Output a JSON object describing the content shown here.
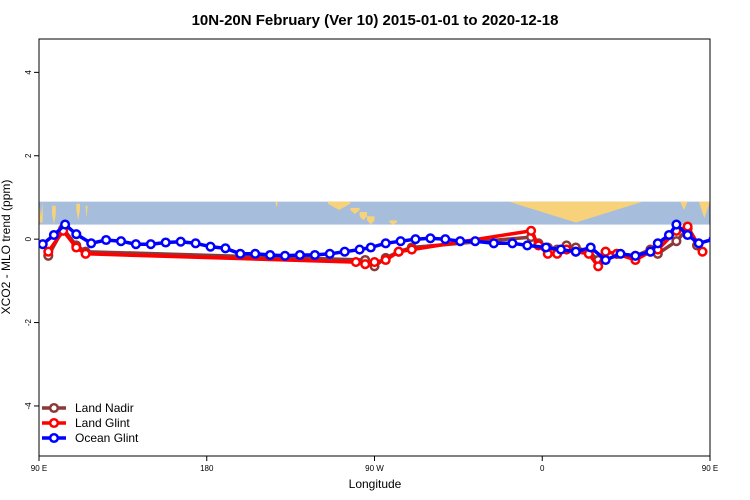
{
  "chart_data": {
    "type": "line",
    "title": "10N-20N February (Ver 10)   2015-01-01 to 2020-12-18",
    "xlabel": "Longitude",
    "ylabel": "XCO2 - MLO trend (ppm)",
    "xlim": [
      90,
      450
    ],
    "ylim": [
      -5.2,
      4.8
    ],
    "x_ticks": [
      {
        "value": 90,
        "label": "90 E"
      },
      {
        "value": 180,
        "label": "180"
      },
      {
        "value": 270,
        "label": "90 W"
      },
      {
        "value": 360,
        "label": "0"
      },
      {
        "value": 450,
        "label": "90 E"
      },
      {
        "value": 540,
        "label": "180"
      }
    ],
    "y_ticks": [
      {
        "value": -4,
        "label": "-4"
      },
      {
        "value": -2,
        "label": "-2"
      },
      {
        "value": 0,
        "label": "0"
      },
      {
        "value": 2,
        "label": "2"
      },
      {
        "value": 4,
        "label": "4"
      }
    ],
    "map_band": {
      "y_from": 0.35,
      "y_to": 0.9,
      "ocean_color": "#a6bddb",
      "land_color": "#f7d27a"
    },
    "legend": {
      "position": "bottom-left"
    },
    "series": [
      {
        "name": "Land Nadir",
        "color": "#8b3a3a",
        "points": [
          [
            95,
            -0.4
          ],
          [
            103,
            0.25
          ],
          [
            110,
            -0.15
          ],
          [
            115,
            -0.3
          ],
          [
            265,
            -0.5
          ],
          [
            270,
            -0.65
          ],
          [
            276,
            -0.45
          ],
          [
            283,
            -0.3
          ],
          [
            290,
            -0.2
          ],
          [
            354,
            0.05
          ],
          [
            358,
            -0.1
          ],
          [
            363,
            -0.2
          ],
          [
            368,
            -0.25
          ],
          [
            373,
            -0.15
          ],
          [
            378,
            -0.2
          ],
          [
            385,
            -0.3
          ],
          [
            390,
            -0.5
          ],
          [
            394,
            -0.3
          ],
          [
            400,
            -0.35
          ],
          [
            410,
            -0.4
          ],
          [
            418,
            -0.25
          ],
          [
            422,
            -0.35
          ],
          [
            432,
            -0.05
          ],
          [
            438,
            0.25
          ],
          [
            443,
            -0.15
          ]
        ]
      },
      {
        "name": "Land Glint",
        "color": "#ff0000",
        "points": [
          [
            95,
            -0.3
          ],
          [
            103,
            0.2
          ],
          [
            110,
            -0.2
          ],
          [
            115,
            -0.35
          ],
          [
            260,
            -0.55
          ],
          [
            265,
            -0.6
          ],
          [
            270,
            -0.55
          ],
          [
            276,
            -0.5
          ],
          [
            283,
            -0.3
          ],
          [
            290,
            -0.25
          ],
          [
            354,
            0.2
          ],
          [
            358,
            -0.15
          ],
          [
            363,
            -0.35
          ],
          [
            368,
            -0.35
          ],
          [
            373,
            -0.25
          ],
          [
            378,
            -0.3
          ],
          [
            385,
            -0.35
          ],
          [
            390,
            -0.65
          ],
          [
            394,
            -0.3
          ],
          [
            400,
            -0.35
          ],
          [
            410,
            -0.5
          ],
          [
            418,
            -0.3
          ],
          [
            422,
            -0.25
          ],
          [
            432,
            0.2
          ],
          [
            438,
            0.3
          ],
          [
            446,
            -0.3
          ]
        ]
      },
      {
        "name": "Ocean Glint",
        "color": "#0000ff",
        "points": [
          [
            92,
            -0.12
          ],
          [
            98,
            0.1
          ],
          [
            104,
            0.35
          ],
          [
            110,
            0.12
          ],
          [
            118,
            -0.1
          ],
          [
            126,
            -0.02
          ],
          [
            134,
            -0.05
          ],
          [
            142,
            -0.12
          ],
          [
            150,
            -0.12
          ],
          [
            158,
            -0.08
          ],
          [
            166,
            -0.06
          ],
          [
            174,
            -0.1
          ],
          [
            182,
            -0.18
          ],
          [
            190,
            -0.22
          ],
          [
            198,
            -0.35
          ],
          [
            206,
            -0.35
          ],
          [
            214,
            -0.38
          ],
          [
            222,
            -0.4
          ],
          [
            230,
            -0.38
          ],
          [
            238,
            -0.38
          ],
          [
            246,
            -0.35
          ],
          [
            254,
            -0.3
          ],
          [
            262,
            -0.25
          ],
          [
            268,
            -0.2
          ],
          [
            276,
            -0.1
          ],
          [
            284,
            -0.05
          ],
          [
            292,
            0.0
          ],
          [
            300,
            0.02
          ],
          [
            308,
            0.0
          ],
          [
            316,
            -0.05
          ],
          [
            324,
            -0.05
          ],
          [
            334,
            -0.1
          ],
          [
            344,
            -0.1
          ],
          [
            352,
            -0.15
          ],
          [
            362,
            -0.2
          ],
          [
            370,
            -0.25
          ],
          [
            378,
            -0.3
          ],
          [
            386,
            -0.2
          ],
          [
            394,
            -0.5
          ],
          [
            402,
            -0.35
          ],
          [
            410,
            -0.4
          ],
          [
            418,
            -0.3
          ],
          [
            422,
            -0.1
          ],
          [
            428,
            0.1
          ],
          [
            432,
            0.35
          ],
          [
            438,
            0.1
          ],
          [
            444,
            -0.1
          ],
          [
            452,
            0.0
          ],
          [
            460,
            -0.02
          ],
          [
            468,
            -0.12
          ],
          [
            476,
            -0.1
          ],
          [
            484,
            -0.08
          ]
        ]
      }
    ]
  }
}
